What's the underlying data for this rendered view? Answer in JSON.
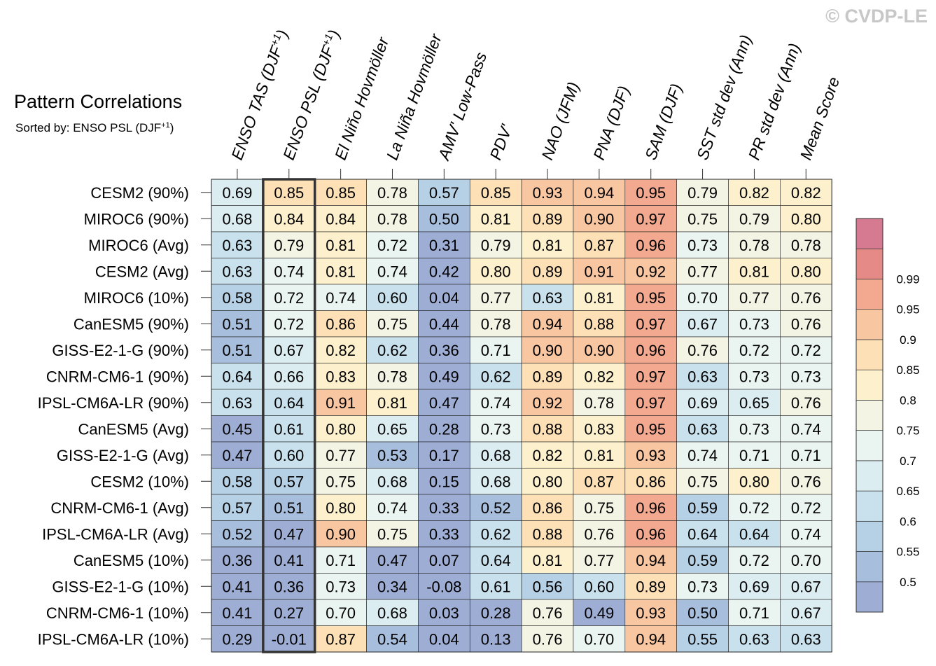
{
  "watermark": "© CVDP-LE",
  "chart_data": {
    "type": "heatmap",
    "title": "Pattern Correlations",
    "subtitle": "Sorted by: ENSO PSL (DJF+1)",
    "columns": [
      "ENSO TAS (DJF+1)",
      "ENSO PSL (DJF+1)",
      "El Niño Hovmöller",
      "La Niña Hovmöller",
      "AMV' Low-Pass",
      "PDV'",
      "NAO (JFM)",
      "PNA (DJF)",
      "SAM (DJF)",
      "SST std dev (Ann)",
      "PR std dev (Ann)",
      "Mean Score"
    ],
    "rows": [
      "CESM2 (90%)",
      "MIROC6 (90%)",
      "MIROC6 (Avg)",
      "CESM2 (Avg)",
      "MIROC6 (10%)",
      "CanESM5 (90%)",
      "GISS-E2-1-G (90%)",
      "CNRM-CM6-1 (90%)",
      "IPSL-CM6A-LR (90%)",
      "CanESM5 (Avg)",
      "GISS-E2-1-G (Avg)",
      "CESM2 (10%)",
      "CNRM-CM6-1 (Avg)",
      "IPSL-CM6A-LR (Avg)",
      "CanESM5 (10%)",
      "GISS-E2-1-G (10%)",
      "CNRM-CM6-1 (10%)",
      "IPSL-CM6A-LR (10%)"
    ],
    "values": [
      [
        "0.69",
        "0.85",
        "0.85",
        "0.78",
        "0.57",
        "0.85",
        "0.93",
        "0.94",
        "0.95",
        "0.79",
        "0.82",
        "0.82"
      ],
      [
        "0.68",
        "0.84",
        "0.84",
        "0.78",
        "0.50",
        "0.81",
        "0.89",
        "0.90",
        "0.97",
        "0.75",
        "0.79",
        "0.80"
      ],
      [
        "0.63",
        "0.79",
        "0.81",
        "0.72",
        "0.31",
        "0.79",
        "0.81",
        "0.87",
        "0.96",
        "0.73",
        "0.78",
        "0.78"
      ],
      [
        "0.63",
        "0.74",
        "0.81",
        "0.74",
        "0.42",
        "0.80",
        "0.89",
        "0.91",
        "0.92",
        "0.77",
        "0.81",
        "0.80"
      ],
      [
        "0.58",
        "0.72",
        "0.74",
        "0.60",
        "0.04",
        "0.77",
        "0.63",
        "0.81",
        "0.95",
        "0.70",
        "0.77",
        "0.76"
      ],
      [
        "0.51",
        "0.72",
        "0.86",
        "0.75",
        "0.44",
        "0.78",
        "0.94",
        "0.88",
        "0.97",
        "0.67",
        "0.73",
        "0.76"
      ],
      [
        "0.51",
        "0.67",
        "0.82",
        "0.62",
        "0.36",
        "0.71",
        "0.90",
        "0.90",
        "0.96",
        "0.76",
        "0.72",
        "0.72"
      ],
      [
        "0.64",
        "0.66",
        "0.83",
        "0.78",
        "0.49",
        "0.62",
        "0.89",
        "0.82",
        "0.97",
        "0.63",
        "0.73",
        "0.73"
      ],
      [
        "0.63",
        "0.64",
        "0.91",
        "0.81",
        "0.47",
        "0.74",
        "0.92",
        "0.78",
        "0.97",
        "0.69",
        "0.65",
        "0.76"
      ],
      [
        "0.45",
        "0.61",
        "0.80",
        "0.65",
        "0.28",
        "0.73",
        "0.88",
        "0.83",
        "0.95",
        "0.63",
        "0.73",
        "0.74"
      ],
      [
        "0.47",
        "0.60",
        "0.77",
        "0.53",
        "0.17",
        "0.68",
        "0.82",
        "0.81",
        "0.93",
        "0.74",
        "0.71",
        "0.71"
      ],
      [
        "0.58",
        "0.57",
        "0.75",
        "0.68",
        "0.15",
        "0.68",
        "0.80",
        "0.87",
        "0.86",
        "0.75",
        "0.80",
        "0.76"
      ],
      [
        "0.57",
        "0.51",
        "0.80",
        "0.74",
        "0.33",
        "0.52",
        "0.86",
        "0.75",
        "0.96",
        "0.59",
        "0.72",
        "0.72"
      ],
      [
        "0.52",
        "0.47",
        "0.90",
        "0.75",
        "0.33",
        "0.62",
        "0.88",
        "0.76",
        "0.96",
        "0.64",
        "0.64",
        "0.74"
      ],
      [
        "0.36",
        "0.41",
        "0.71",
        "0.47",
        "0.07",
        "0.64",
        "0.81",
        "0.77",
        "0.94",
        "0.59",
        "0.72",
        "0.70"
      ],
      [
        "0.41",
        "0.36",
        "0.73",
        "0.34",
        "-0.08",
        "0.61",
        "0.56",
        "0.60",
        "0.89",
        "0.73",
        "0.69",
        "0.67"
      ],
      [
        "0.41",
        "0.27",
        "0.70",
        "0.68",
        "0.03",
        "0.28",
        "0.76",
        "0.49",
        "0.93",
        "0.50",
        "0.71",
        "0.67"
      ],
      [
        "0.29",
        "-0.01",
        "0.87",
        "0.54",
        "0.04",
        "0.13",
        "0.76",
        "0.70",
        "0.94",
        "0.55",
        "0.63",
        "0.63"
      ]
    ],
    "highlighted_column": "ENSO PSL (DJF+1)",
    "colorbar": {
      "levels": [
        0.5,
        0.55,
        0.6,
        0.65,
        0.7,
        0.75,
        0.8,
        0.85,
        0.9,
        0.95,
        0.99
      ],
      "tick_labels": [
        "0.5",
        "0.55",
        "0.6",
        "0.65",
        "0.7",
        "0.75",
        "0.8",
        "0.85",
        "0.9",
        "0.95",
        "0.99"
      ],
      "colors": [
        "#9dadd4",
        "#a7bedd",
        "#b6d1e5",
        "#c8e1ec",
        "#dcedf2",
        "#eaf4f0",
        "#f4f4e4",
        "#fdf0cd",
        "#fde0b6",
        "#f9c6a2",
        "#f2a990",
        "#e58a86",
        "#d57a91"
      ]
    }
  }
}
